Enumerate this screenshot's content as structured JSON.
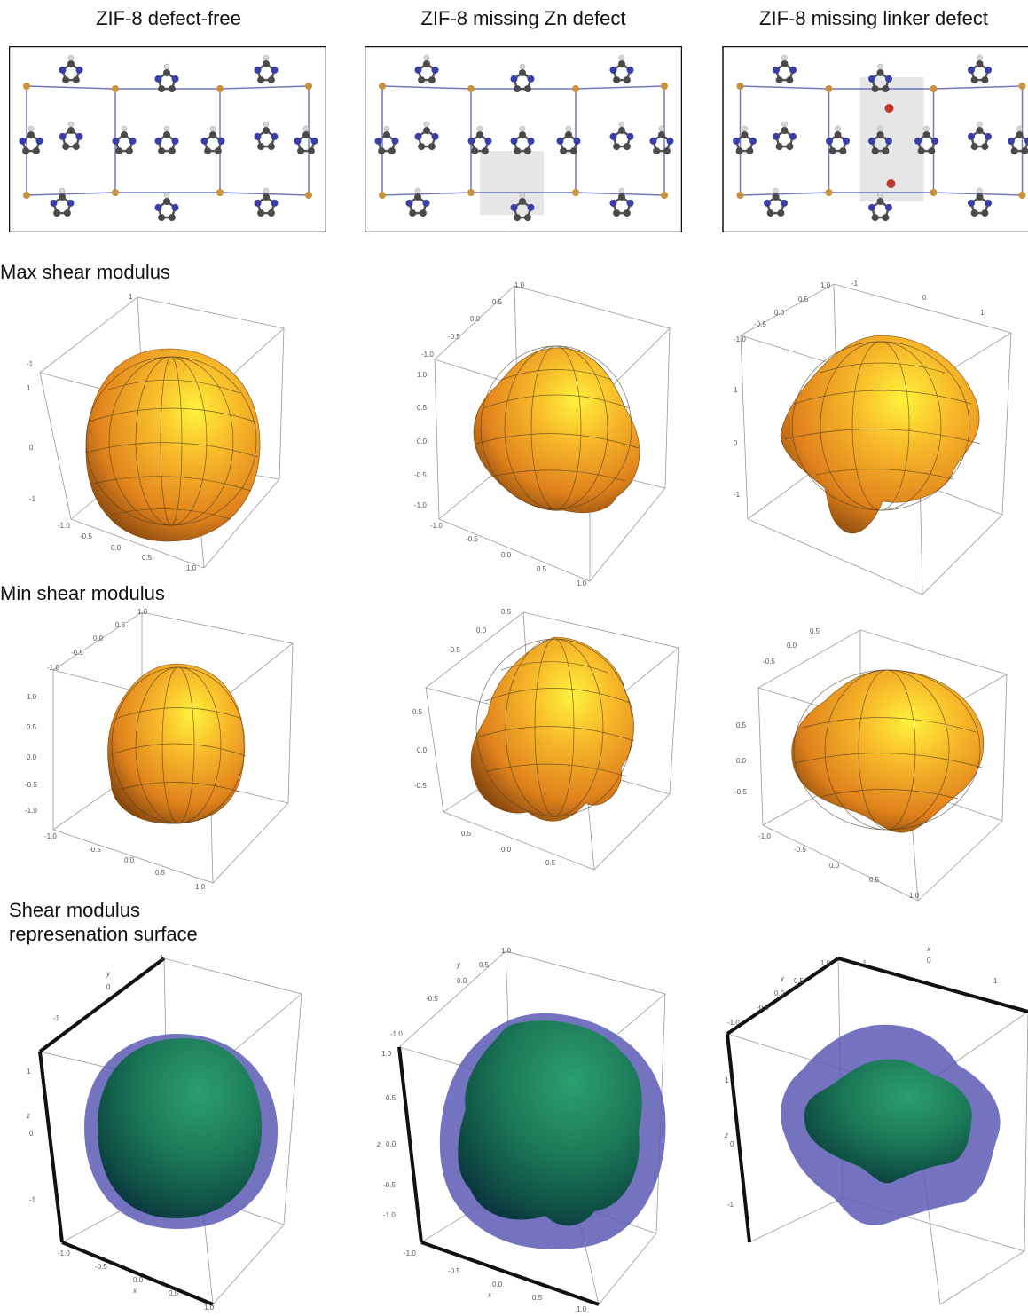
{
  "columns": [
    {
      "title": "ZIF-8 defect-free"
    },
    {
      "title": "ZIF-8 missing Zn defect"
    },
    {
      "title": "ZIF-8 missing linker defect"
    }
  ],
  "rows": {
    "max_label": "Max shear modulus",
    "min_label": "Min shear modulus",
    "surf_label_1": "Shear modulus",
    "surf_label_2": "represenation surface"
  },
  "colors": {
    "surface_orange": "#f5a623",
    "surface_green": "#1f8a5a",
    "outer_blue": "#5b5bb5",
    "zinc": "#c8913a",
    "nitrogen": "#3a3fa8",
    "carbon": "#4a4a4a",
    "hydrogen": "#d8d8d8",
    "oxygen": "#c0392b",
    "defect_highlight": "#e6e6e6"
  }
}
